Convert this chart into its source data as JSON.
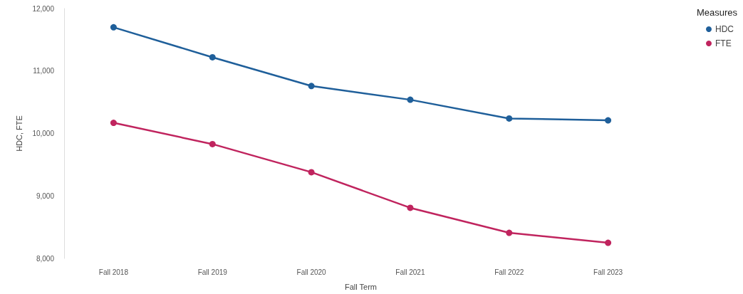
{
  "chart_data": {
    "type": "line",
    "xlabel": "Fall Term",
    "ylabel": "HDC, FTE",
    "legend_title": "Measures",
    "categories": [
      "Fall 2018",
      "Fall 2019",
      "Fall 2020",
      "Fall 2021",
      "Fall 2022",
      "Fall 2023"
    ],
    "series": [
      {
        "name": "HDC",
        "color": "#1f5f9a",
        "values": [
          11700,
          11220,
          10760,
          10540,
          10240,
          10210
        ]
      },
      {
        "name": "FTE",
        "color": "#c0245e",
        "values": [
          10170,
          9830,
          9380,
          8810,
          8410,
          8250
        ]
      }
    ],
    "ylim": [
      8000,
      12000
    ],
    "yticks": [
      {
        "value": 8000,
        "label": "8,000"
      },
      {
        "value": 9000,
        "label": "9,000"
      },
      {
        "value": 10000,
        "label": "10,000"
      },
      {
        "value": 11000,
        "label": "11,000"
      },
      {
        "value": 12000,
        "label": "12,000"
      }
    ],
    "grid": false,
    "legend": "top right",
    "marker": "circle",
    "line_style": "solid"
  }
}
